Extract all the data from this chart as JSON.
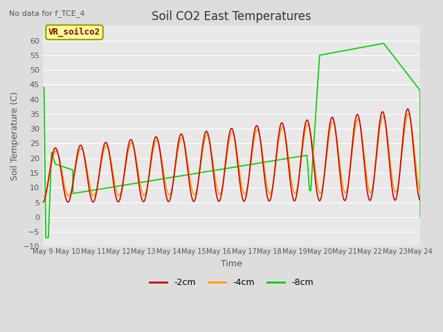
{
  "title": "Soil CO2 East Temperatures",
  "subtitle": "No data for f_TCE_4",
  "xlabel": "Time",
  "ylabel": "Soil Temperature (C)",
  "ylim": [
    -10,
    65
  ],
  "yticks": [
    -10,
    -5,
    0,
    5,
    10,
    15,
    20,
    25,
    30,
    35,
    40,
    45,
    50,
    55,
    60
  ],
  "legend_label": "VR_soilco2",
  "line_colors": {
    "2cm": "#cc0000",
    "4cm": "#ff9900",
    "8cm": "#00cc00"
  },
  "fig_bg": "#dddddd",
  "ax_bg": "#e8e8e8",
  "x_start_day": 9,
  "x_end_day": 24,
  "x_tick_days": [
    9,
    10,
    11,
    12,
    13,
    14,
    15,
    16,
    17,
    18,
    19,
    20,
    21,
    22,
    23,
    24
  ],
  "x_tick_labels": [
    "May 9",
    "May 10",
    "May 11",
    "May 12",
    "May 13",
    "May 14",
    "May 15",
    "May 16",
    "May 17",
    "May 18",
    "May 19",
    "May 20",
    "May 21",
    "May 22",
    "May 23",
    "May 24"
  ]
}
